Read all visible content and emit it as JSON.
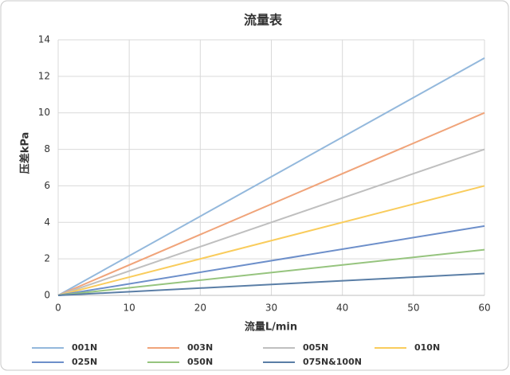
{
  "chart_data": {
    "type": "line",
    "title": "流量表",
    "x_label": "流量L/min",
    "y_label": "压差kPa",
    "x": [
      0,
      60
    ],
    "series": [
      {
        "name": "001N",
        "color": "#93b8dc",
        "values": [
          0,
          13
        ]
      },
      {
        "name": "003N",
        "color": "#f0a47a",
        "values": [
          0,
          10
        ]
      },
      {
        "name": "005N",
        "color": "#bfbfbf",
        "values": [
          0,
          8
        ]
      },
      {
        "name": "010N",
        "color": "#f9cc5c",
        "values": [
          0,
          6
        ]
      },
      {
        "name": "025N",
        "color": "#6d8fca",
        "values": [
          0,
          3.8
        ]
      },
      {
        "name": "050N",
        "color": "#96c47e",
        "values": [
          0,
          2.5
        ]
      },
      {
        "name": "075N&100N",
        "color": "#5a7ea6",
        "values": [
          0,
          1.2
        ]
      }
    ],
    "xlim": [
      0,
      60
    ],
    "xticks": [
      0,
      10,
      20,
      30,
      40,
      50,
      60
    ],
    "ylim": [
      0,
      14
    ],
    "yticks": [
      0,
      2,
      4,
      6,
      8,
      10,
      12,
      14
    ],
    "grid": true,
    "legend": "bottom"
  }
}
